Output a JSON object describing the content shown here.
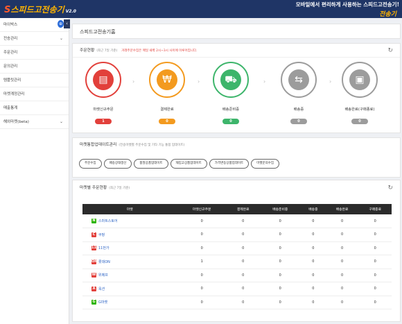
{
  "header": {
    "logo_s": "S",
    "logo_text": "스피드고전송기",
    "version": "V2.0",
    "slogan": "모바일에서 편리하게 사용하는 스피드고전송기!",
    "brand": "전송기"
  },
  "sidebar": {
    "toggle_icon": "⊕",
    "collapse_icon": "‹",
    "items": [
      {
        "label": "마이박스",
        "chevron": ""
      },
      {
        "label": "전송관리",
        "chevron": "⌄"
      },
      {
        "label": "주문관리",
        "chevron": ""
      },
      {
        "label": "문의관리",
        "chevron": ""
      },
      {
        "label": "템플릿관리",
        "chevron": ""
      },
      {
        "label": "마켓계정관리",
        "chevron": ""
      },
      {
        "label": "매출통계",
        "chevron": ""
      },
      {
        "label": "해외마켓(beta)",
        "chevron": "⌄"
      }
    ]
  },
  "page_title": "스피드고전송기홈",
  "order_status": {
    "title": "주문현황",
    "subtitle": "(최근 7일 기준)",
    "notice": "거래주문수집은 매일 새벽 2시~3시 사이에 이루어집니다.",
    "refresh_icon": "↻",
    "stages": [
      {
        "label": "마켓신규주문",
        "count": "1",
        "color": "#e2403b",
        "icon": "receipt-icon",
        "glyph": "▤"
      },
      {
        "label": "결제완료",
        "count": "0",
        "color": "#f39a1f",
        "icon": "money-icon",
        "glyph": "₩"
      },
      {
        "label": "배송준비중",
        "count": "0",
        "color": "#3db56b",
        "icon": "truck-icon",
        "glyph": "⛟"
      },
      {
        "label": "배송중",
        "count": "0",
        "color": "#9c9c9c",
        "icon": "delivery-icon",
        "glyph": "⇆"
      },
      {
        "label": "배송완료(구매종료)",
        "count": "0",
        "color": "#9c9c9c",
        "icon": "box-icon",
        "glyph": "▣"
      }
    ],
    "arrow": "›"
  },
  "market_update": {
    "title": "마켓통합업데이트관리",
    "subtitle": "(전송마켓별 주문수집 및 기타 기능 통합 업데이트)",
    "buttons": [
      "주문수집",
      "배송상태갱신",
      "품절상품업데이트",
      "재입고상품업데이트",
      "가격변동상품업데이트",
      "마켓문의수집"
    ]
  },
  "market_orders": {
    "title": "마켓별 주문현황",
    "subtitle": "(최근 7일 기준)",
    "refresh_icon": "↻",
    "headers": [
      "마켓",
      "마켓신규주문",
      "결제완료",
      "배송준비중",
      "배송중",
      "배송완료",
      "구매종료"
    ],
    "rows": [
      {
        "market": "스마트스토어",
        "icon_text": "N",
        "icon_color": "#2db400",
        "values": [
          "0",
          "0",
          "0",
          "0",
          "0",
          "0"
        ]
      },
      {
        "market": "쿠팡",
        "icon_text": "C",
        "icon_color": "#e2403b",
        "values": [
          "0",
          "0",
          "0",
          "0",
          "0",
          "0"
        ]
      },
      {
        "market": "11번가",
        "icon_text": "11",
        "icon_color": "#e2403b",
        "values": [
          "0",
          "0",
          "0",
          "0",
          "0",
          "0"
        ]
      },
      {
        "market": "롯데ON",
        "icon_text": "ON",
        "icon_color": "#e2403b",
        "values": [
          "1",
          "0",
          "0",
          "0",
          "0",
          "0"
        ]
      },
      {
        "market": "위메프",
        "icon_text": "W",
        "icon_color": "#e2403b",
        "values": [
          "0",
          "0",
          "0",
          "0",
          "0",
          "0"
        ]
      },
      {
        "market": "옥션",
        "icon_text": "A",
        "icon_color": "#e2403b",
        "values": [
          "0",
          "0",
          "0",
          "0",
          "0",
          "0"
        ]
      },
      {
        "market": "G마켓",
        "icon_text": "G",
        "icon_color": "#2db400",
        "values": [
          "0",
          "0",
          "0",
          "0",
          "0",
          "0"
        ]
      }
    ]
  }
}
